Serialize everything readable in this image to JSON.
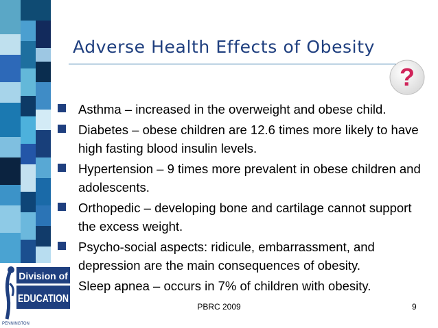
{
  "slide": {
    "title": "Adverse Health Effects of Obesity",
    "bullets": [
      "Asthma – increased in the overweight and obese child.",
      "Diabetes – obese children are 12.6 times more likely to have high fasting blood insulin levels.",
      "Hypertension – 9 times more prevalent in obese children and adolescents.",
      "Orthopedic – developing bone and cartilage cannot support the excess weight.",
      "Psycho-social aspects: ridicule, embarrassment, and depression are the main consequences of obesity.",
      "Sleep apnea – occurs in 7% of children with obesity."
    ],
    "footer_center": "PBRC 2009",
    "page_number": "9"
  },
  "logo": {
    "line1": "Division of",
    "line2": "EDUCATION",
    "small": "PENNINGTON"
  },
  "badge": {
    "symbol": "?"
  },
  "colors": {
    "title": "#1f3f7f",
    "bullet": "#1f3f7f",
    "badge_question": "#d0245a"
  }
}
